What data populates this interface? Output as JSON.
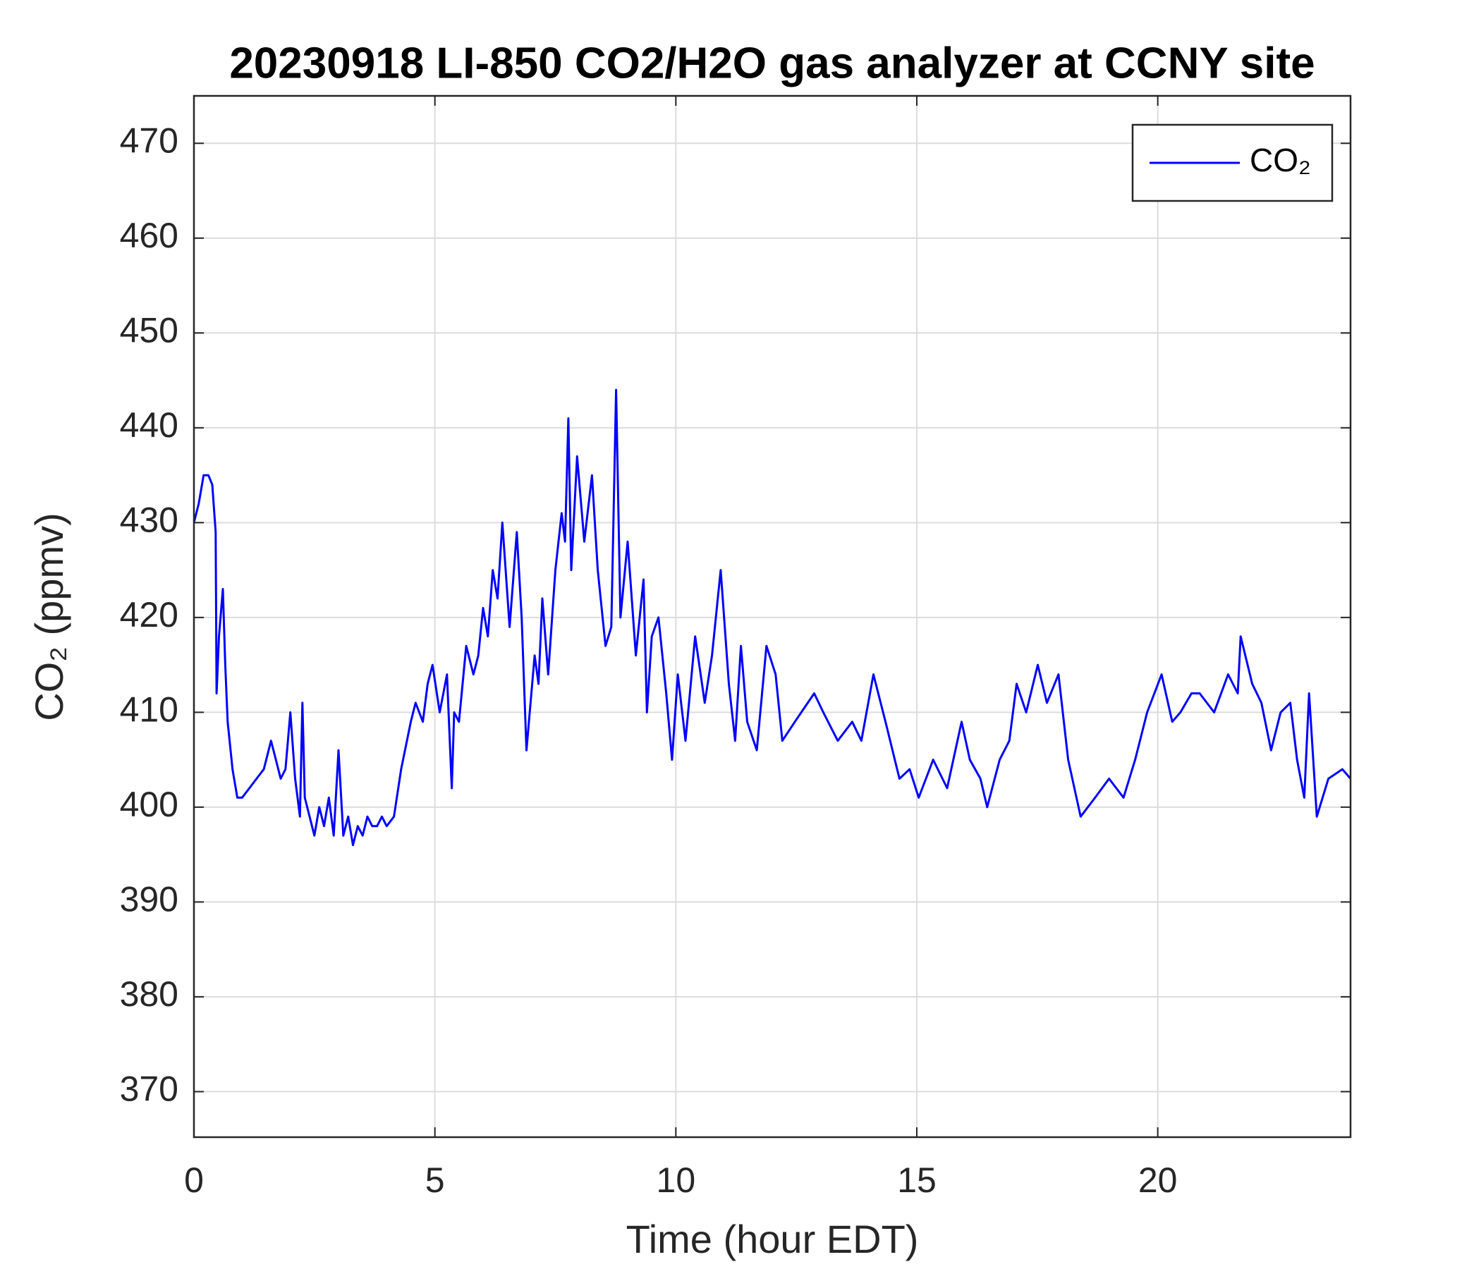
{
  "chart_data": {
    "type": "line",
    "title": "20230918 LI-850 CO2/H2O gas analyzer at CCNY site",
    "xlabel": "Time (hour EDT)",
    "ylabel": "CO₂ (ppmv)",
    "x": [
      0,
      0.1,
      0.2,
      0.3,
      0.38,
      0.45,
      0.47,
      0.52,
      0.6,
      0.65,
      0.7,
      0.8,
      0.9,
      1.0,
      1.15,
      1.3,
      1.45,
      1.6,
      1.7,
      1.8,
      1.9,
      2.0,
      2.1,
      2.2,
      2.25,
      2.3,
      2.4,
      2.5,
      2.6,
      2.7,
      2.8,
      2.9,
      3.0,
      3.1,
      3.2,
      3.3,
      3.4,
      3.5,
      3.6,
      3.7,
      3.8,
      3.9,
      4.0,
      4.15,
      4.3,
      4.5,
      4.6,
      4.75,
      4.85,
      4.95,
      5.1,
      5.25,
      5.35,
      5.4,
      5.5,
      5.65,
      5.8,
      5.9,
      6.0,
      6.1,
      6.2,
      6.3,
      6.4,
      6.55,
      6.7,
      6.8,
      6.9,
      7.07,
      7.15,
      7.23,
      7.35,
      7.5,
      7.63,
      7.7,
      7.77,
      7.83,
      7.95,
      8.1,
      8.26,
      8.38,
      8.54,
      8.66,
      8.76,
      8.85,
      9.0,
      9.17,
      9.33,
      9.4,
      9.5,
      9.64,
      9.8,
      9.92,
      10.04,
      10.2,
      10.4,
      10.6,
      10.75,
      10.93,
      11.1,
      11.23,
      11.35,
      11.48,
      11.68,
      11.88,
      12.07,
      12.21,
      12.47,
      12.87,
      13.06,
      13.36,
      13.66,
      13.85,
      14.1,
      14.35,
      14.64,
      14.85,
      15.04,
      15.34,
      15.63,
      15.93,
      16.1,
      16.32,
      16.46,
      16.72,
      16.92,
      17.07,
      17.27,
      17.51,
      17.7,
      17.94,
      18.14,
      18.4,
      18.7,
      18.99,
      19.29,
      19.53,
      19.78,
      20.08,
      20.3,
      20.47,
      20.7,
      20.87,
      21.17,
      21.46,
      21.66,
      21.72,
      21.96,
      22.15,
      22.35,
      22.55,
      22.75,
      22.89,
      23.04,
      23.14,
      23.3,
      23.54,
      23.83,
      24.0
    ],
    "series": [
      {
        "name": "CO₂",
        "color": "#0000ff",
        "values": [
          430,
          432,
          435,
          435,
          434,
          429,
          412,
          418,
          423,
          415,
          409,
          404,
          401,
          401,
          402,
          403,
          404,
          407,
          405,
          403,
          404,
          410,
          403,
          399,
          411,
          401,
          399,
          397,
          400,
          398,
          401,
          397,
          406,
          397,
          399,
          396,
          398,
          397,
          399,
          398,
          398,
          399,
          398,
          399,
          404,
          409,
          411,
          409,
          413,
          415,
          410,
          414,
          402,
          410,
          409,
          417,
          414,
          416,
          421,
          418,
          425,
          422,
          430,
          419,
          429,
          420,
          406,
          416,
          413,
          422,
          414,
          425,
          431,
          428,
          441,
          425,
          437,
          428,
          435,
          425,
          417,
          419,
          444,
          420,
          428,
          416,
          424,
          410,
          418,
          420,
          412,
          405,
          414,
          407,
          418,
          411,
          416,
          425,
          413,
          407,
          417,
          409,
          406,
          417,
          414,
          407,
          409,
          412,
          410,
          407,
          409,
          407,
          414,
          409,
          403,
          404,
          401,
          405,
          402,
          409,
          405,
          403,
          400,
          405,
          407,
          413,
          410,
          415,
          411,
          414,
          405,
          399,
          401,
          403,
          401,
          405,
          410,
          414,
          409,
          410,
          412,
          412,
          410,
          414,
          412,
          418,
          413,
          411,
          406,
          410,
          411,
          405,
          401,
          412,
          399,
          403,
          404,
          403
        ]
      }
    ],
    "xlim": [
      0,
      24
    ],
    "ylim": [
      365.2,
      475
    ],
    "xticks": [
      0,
      5,
      10,
      15,
      20
    ],
    "yticks": [
      370,
      380,
      390,
      400,
      410,
      420,
      430,
      440,
      450,
      460,
      470
    ],
    "grid": true,
    "legend": "upper right"
  }
}
